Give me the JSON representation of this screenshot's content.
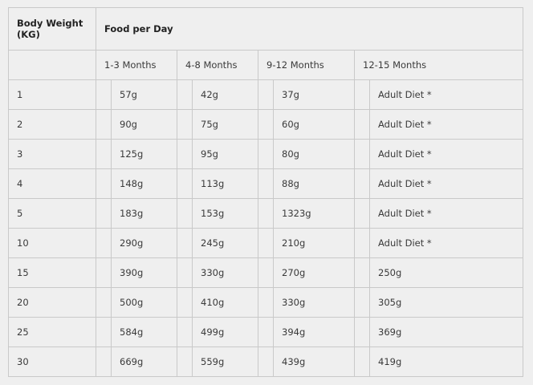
{
  "header": {
    "weight_label_line1": "Body Weight",
    "weight_label_line2": "(KG)",
    "food_label": "Food per Day",
    "age_columns": [
      "1-3 Months",
      "4-8 Months",
      "9-12 Months",
      "12-15 Months"
    ]
  },
  "rows": [
    {
      "weight": "1",
      "values": [
        "57g",
        "42g",
        "37g",
        "Adult Diet *"
      ]
    },
    {
      "weight": "2",
      "values": [
        "90g",
        "75g",
        "60g",
        "Adult Diet *"
      ]
    },
    {
      "weight": "3",
      "values": [
        "125g",
        "95g",
        "80g",
        "Adult Diet *"
      ]
    },
    {
      "weight": "4",
      "values": [
        "148g",
        "113g",
        "88g",
        "Adult Diet *"
      ]
    },
    {
      "weight": "5",
      "values": [
        "183g",
        "153g",
        "1323g",
        "Adult Diet *"
      ]
    },
    {
      "weight": "10",
      "values": [
        "290g",
        "245g",
        "210g",
        "Adult Diet *"
      ]
    },
    {
      "weight": "15",
      "values": [
        "390g",
        "330g",
        "270g",
        "250g"
      ]
    },
    {
      "weight": "20",
      "values": [
        "500g",
        "410g",
        "330g",
        "305g"
      ]
    },
    {
      "weight": "25",
      "values": [
        "584g",
        "499g",
        "394g",
        "369g"
      ]
    },
    {
      "weight": "30",
      "values": [
        "669g",
        "559g",
        "439g",
        "419g"
      ]
    }
  ]
}
